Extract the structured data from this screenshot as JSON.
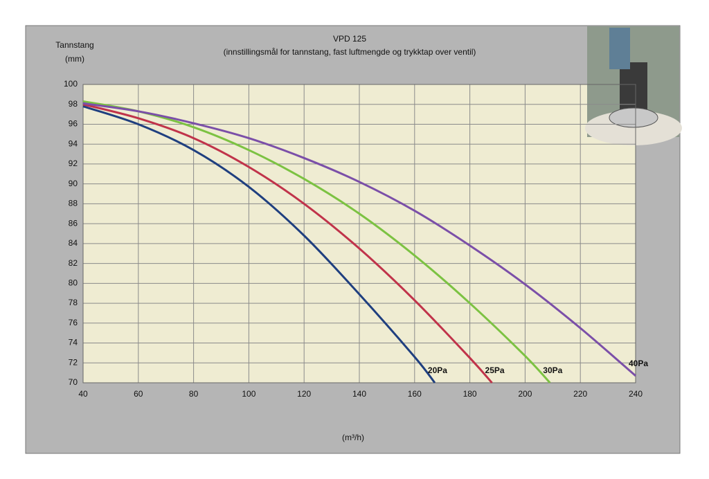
{
  "chart_data": {
    "type": "line",
    "title": "VPD 125",
    "subtitle": "(innstillingsmål for tannstang,  fast luftmengde og trykktap over ventil)",
    "y_label_lines": [
      "Tannstang",
      "(mm)"
    ],
    "x_label": "(m³/h)",
    "xlim": [
      40,
      240
    ],
    "xticks": [
      40,
      60,
      80,
      100,
      120,
      140,
      160,
      180,
      200,
      220,
      240
    ],
    "ylim": [
      70,
      100
    ],
    "yticks": [
      70,
      72,
      74,
      76,
      78,
      80,
      82,
      84,
      86,
      88,
      90,
      92,
      94,
      96,
      98,
      100
    ],
    "grid": true,
    "series": [
      {
        "name": "20Pa",
        "color": "#1f3f7f",
        "x": [
          40,
          60,
          80,
          100,
          120,
          140,
          160,
          167.3
        ],
        "values": [
          97.8,
          96.0,
          93.4,
          89.7,
          84.8,
          78.9,
          72.6,
          70
        ]
      },
      {
        "name": "25Pa",
        "color": "#c0334a",
        "x": [
          40,
          60,
          80,
          100,
          120,
          140,
          160,
          180,
          188
        ],
        "values": [
          98.0,
          96.6,
          94.6,
          91.7,
          88.0,
          83.5,
          78.3,
          72.5,
          70
        ]
      },
      {
        "name": "30Pa",
        "color": "#7cc242",
        "x": [
          40,
          60,
          80,
          100,
          120,
          140,
          160,
          180,
          200,
          209
        ],
        "values": [
          98.3,
          97.3,
          95.7,
          93.4,
          90.5,
          87.0,
          82.8,
          78.0,
          72.7,
          70
        ]
      },
      {
        "name": "40Pa",
        "color": "#7b4fa8",
        "x": [
          40,
          60,
          80,
          100,
          120,
          140,
          160,
          180,
          200,
          220,
          240
        ],
        "values": [
          98.1,
          97.3,
          96.1,
          94.6,
          92.6,
          90.2,
          87.3,
          83.8,
          79.9,
          75.5,
          70.7
        ]
      }
    ]
  }
}
